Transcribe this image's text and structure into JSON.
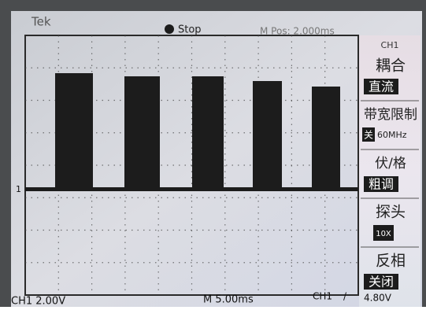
{
  "header": {
    "brand": "Tek",
    "status": "Stop",
    "position": "M Pos: 2.000ms",
    "channel_marker": "1"
  },
  "menu": {
    "channel": "CH1",
    "items": [
      {
        "label": "耦合",
        "value": "直流"
      },
      {
        "label": "带宽限制",
        "value": "关",
        "extra": "60MHz"
      },
      {
        "label": "伏/格",
        "value": "粗调"
      },
      {
        "label": "探头",
        "value": "10X"
      },
      {
        "label": "反相",
        "value": "关闭"
      }
    ]
  },
  "footer": {
    "scale": "CH1 2.00V",
    "timebase": "M 5.00ms",
    "trigger_source": "CH1",
    "trigger_level": "4.80V"
  }
}
